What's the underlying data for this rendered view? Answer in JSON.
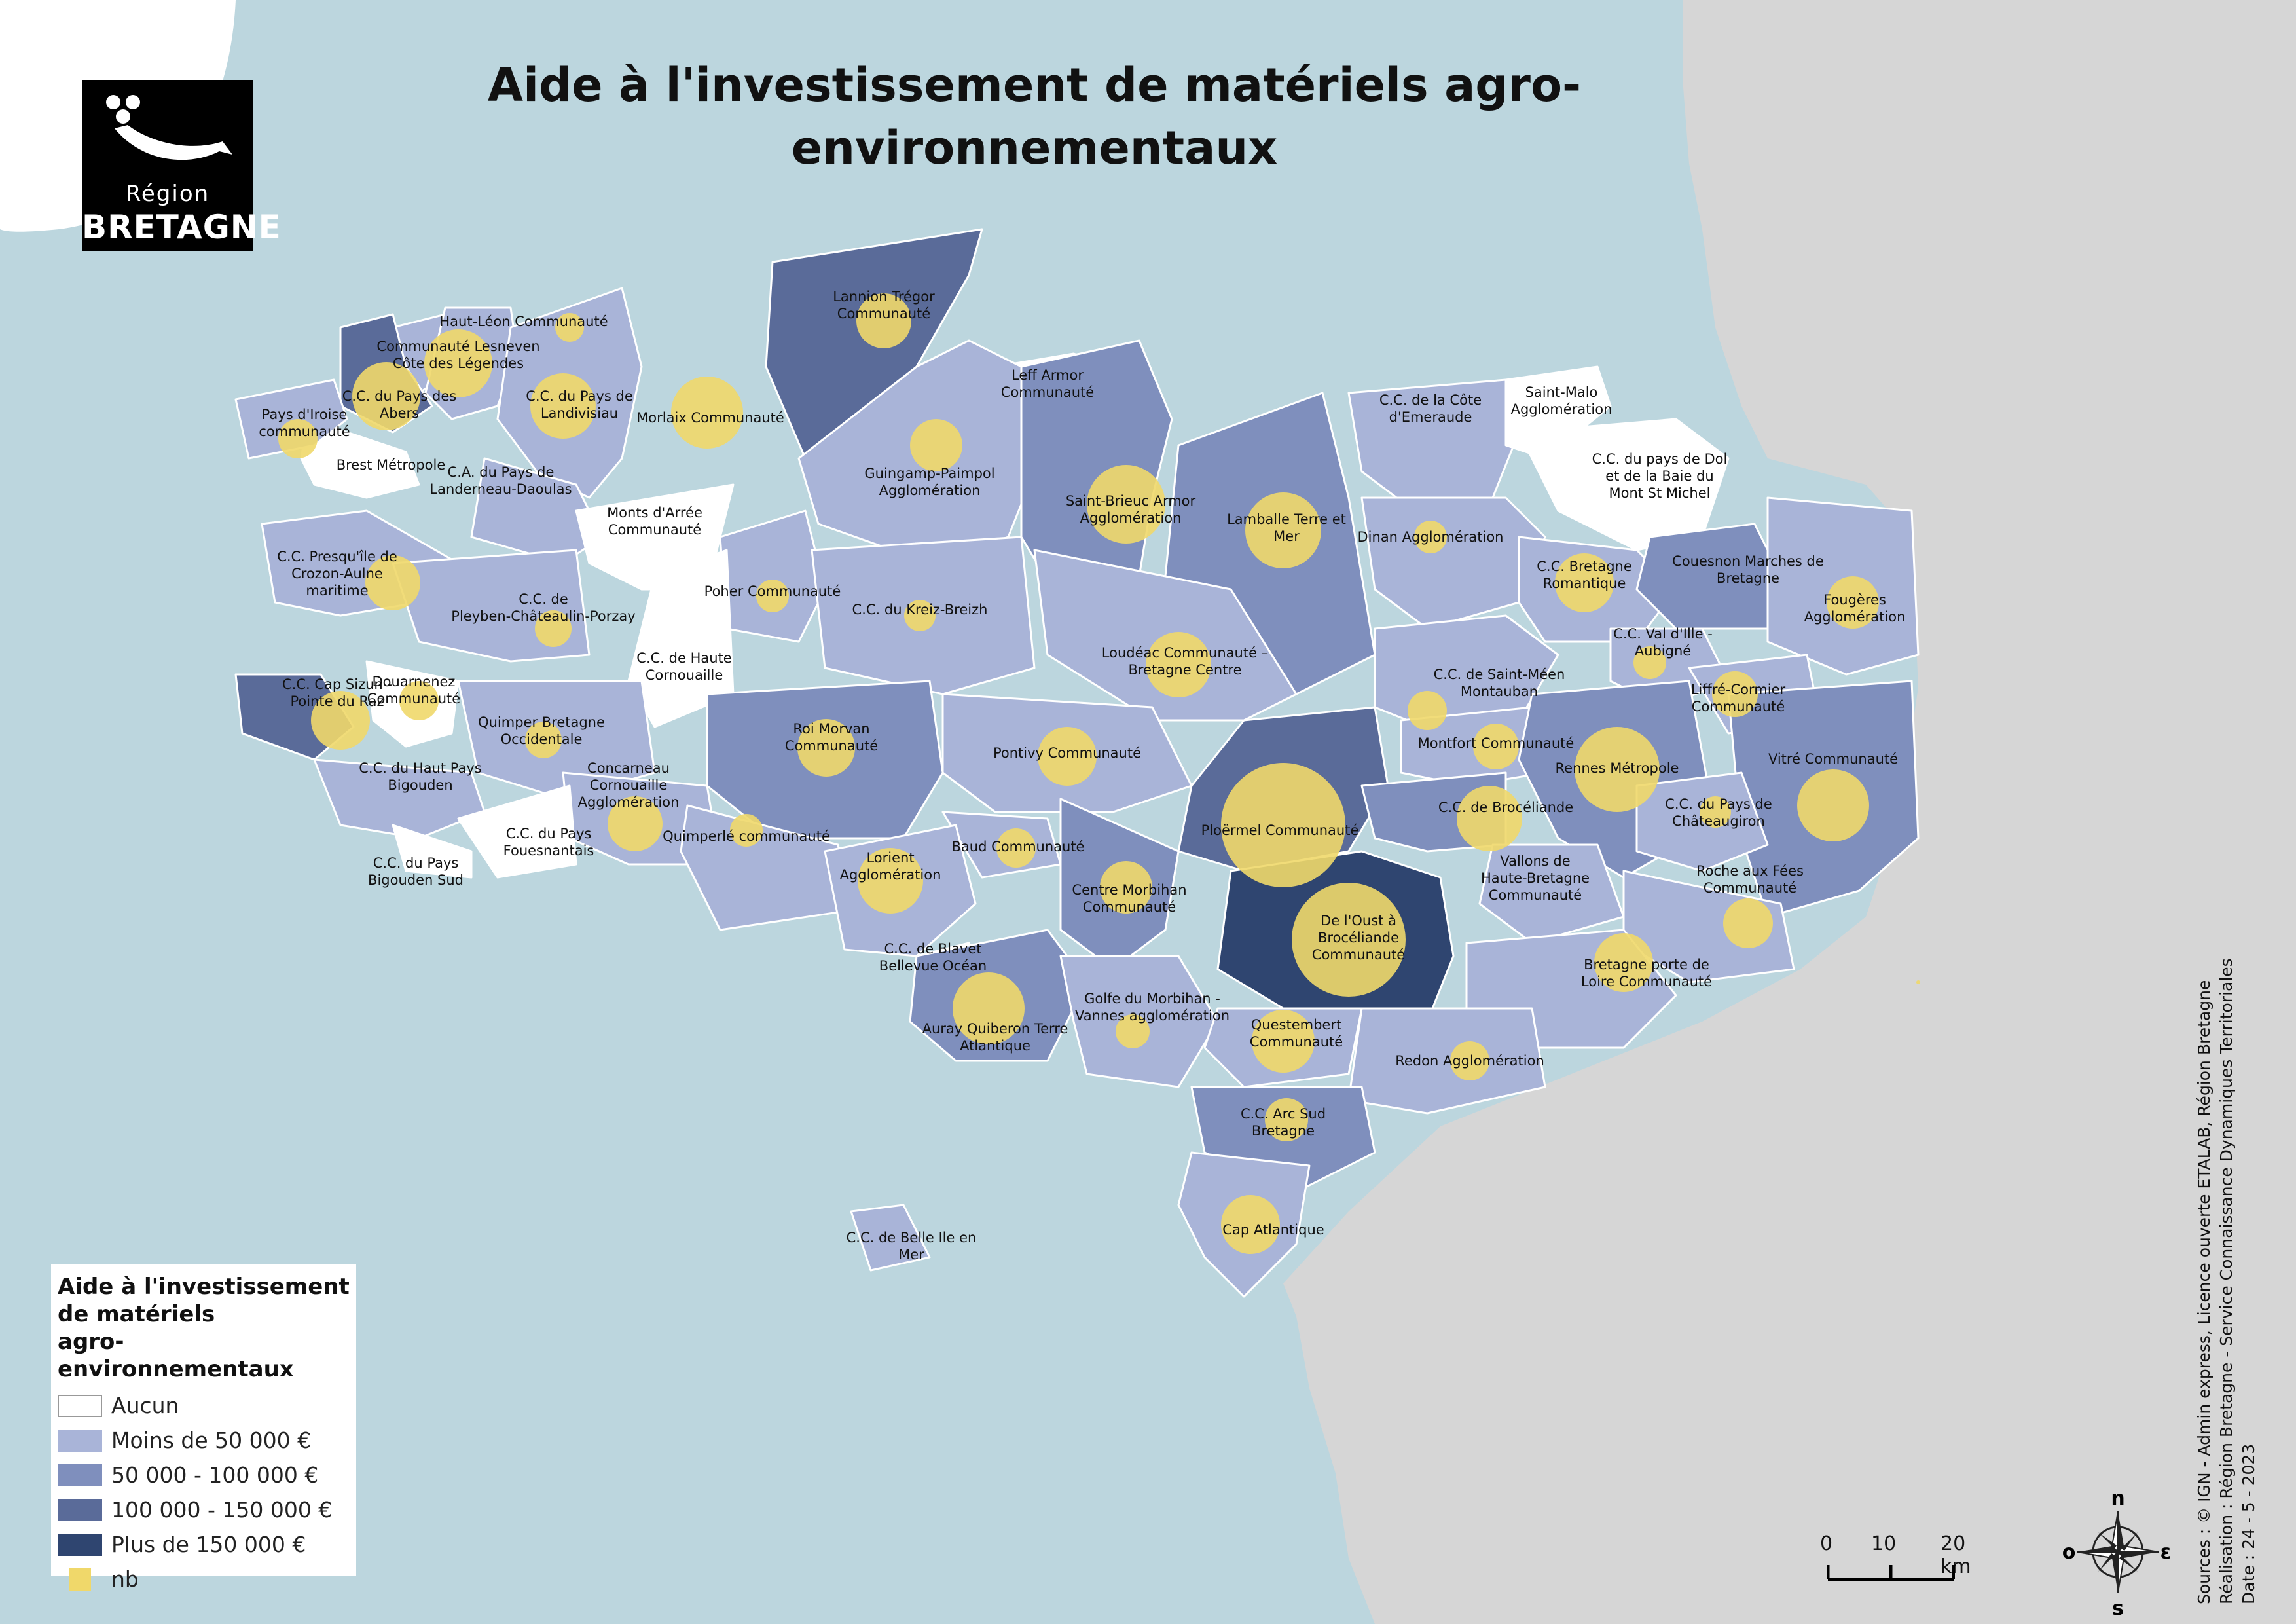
{
  "title": "Aide à l'investissement de matériels agro-environnementaux",
  "logo": {
    "region": "Région",
    "bretagne": "BRETAGNE"
  },
  "colors": {
    "sea": "#bcd6de",
    "outside_land": "#d6d6d6",
    "aucun": "#ffffff",
    "moins_50000": "#a9b4d8",
    "50000_100000": "#7f8fbd",
    "100000_150000": "#5a6b99",
    "plus_150000": "#2f4570",
    "bubble": "#f0d86a",
    "border": "#ffffff"
  },
  "legend": {
    "title_lines": [
      "Aide à l'investissement",
      "de matériels",
      "agro-environnementaux"
    ],
    "items": [
      {
        "label": "Aucun",
        "color": "#ffffff"
      },
      {
        "label": "Moins de  50 000 €",
        "color": "#a9b4d8"
      },
      {
        "label": "50 000 - 100 000 €",
        "color": "#7f8fbd"
      },
      {
        "label": "100 000 - 150 000 €",
        "color": "#5a6b99"
      },
      {
        "label": "Plus de 150 000 €",
        "color": "#2f4570"
      },
      {
        "label": "nb",
        "color": "#f0d86a"
      }
    ]
  },
  "scale_bar": {
    "labels": [
      "0",
      "10",
      "20 km"
    ]
  },
  "compass": {
    "n": "n",
    "s": "s",
    "e": "ε",
    "o": "o"
  },
  "sources": [
    "Sources : © IGN - Admin express, Licence ouverte ETALAB, Région Bretagne",
    "Réalisation : Région Bretagne - Service Connaissance Dynamiques Territoriales",
    "Date : 24 - 5 - 2023"
  ],
  "labels": [
    {
      "lines": [
        "Haut-Léon Communauté"
      ]
    },
    {
      "lines": [
        "Communauté Lesneven",
        "Côte des Légendes"
      ]
    },
    {
      "lines": [
        "C.C. du Pays des",
        "Abers"
      ]
    },
    {
      "lines": [
        "Pays d'Iroise",
        "communauté"
      ]
    },
    {
      "lines": [
        "Brest Métropole"
      ]
    },
    {
      "lines": [
        "C.C. du Pays de",
        "Landivisiau"
      ]
    },
    {
      "lines": [
        "Morlaix Communauté"
      ]
    },
    {
      "lines": [
        "Lannion Trégor",
        "Communauté"
      ]
    },
    {
      "lines": [
        "Leff Armor",
        "Communauté"
      ]
    },
    {
      "lines": [
        "Guingamp-Paimpol",
        "Agglomération"
      ]
    },
    {
      "lines": [
        "C.A. du Pays de",
        "Landerneau-Daoulas"
      ]
    },
    {
      "lines": [
        "Monts d'Arrée",
        "Communauté"
      ]
    },
    {
      "lines": [
        "C.C. Presqu'île de",
        "Crozon-Aulne",
        "maritime"
      ]
    },
    {
      "lines": [
        "Poher Communauté"
      ]
    },
    {
      "lines": [
        "C.C. de",
        "Pleyben-Châteaulin-Porzay"
      ]
    },
    {
      "lines": [
        "C.C. du Kreiz-Breizh"
      ]
    },
    {
      "lines": [
        "C.C. de Haute",
        "Cornouaille"
      ]
    },
    {
      "lines": [
        "C.C. Cap Sizun -",
        "Pointe du Raz"
      ]
    },
    {
      "lines": [
        "Douarnenez",
        "Communauté"
      ]
    },
    {
      "lines": [
        "Quimper Bretagne",
        "Occidentale"
      ]
    },
    {
      "lines": [
        "Roi Morvan",
        "Communauté"
      ]
    },
    {
      "lines": [
        "C.C. du Haut Pays",
        "Bigouden"
      ]
    },
    {
      "lines": [
        "Concarneau",
        "Cornouaille",
        "Agglomération"
      ]
    },
    {
      "lines": [
        "C.C. du Pays",
        "Fouesnantais"
      ]
    },
    {
      "lines": [
        "C.C. du Pays",
        "Bigouden Sud"
      ]
    },
    {
      "lines": [
        "Quimperlé communauté"
      ]
    },
    {
      "lines": [
        "Saint-Brieuc Armor",
        "Agglomération"
      ]
    },
    {
      "lines": [
        "Lamballe Terre et",
        "Mer"
      ]
    },
    {
      "lines": [
        "C.C. de la Côte",
        "d'Emeraude"
      ]
    },
    {
      "lines": [
        "Saint-Malo",
        "Agglomération"
      ]
    },
    {
      "lines": [
        "C.C. du pays de Dol",
        "et de la Baie du",
        "Mont St Michel"
      ]
    },
    {
      "lines": [
        "Dinan Agglomération"
      ]
    },
    {
      "lines": [
        "Loudéac Communauté –",
        "Bretagne Centre"
      ]
    },
    {
      "lines": [
        "Pontivy Communauté"
      ]
    },
    {
      "lines": [
        "C.C. Bretagne",
        "Romantique"
      ]
    },
    {
      "lines": [
        "Couesnon Marches de",
        "Bretagne"
      ]
    },
    {
      "lines": [
        "Fougères",
        "Agglomération"
      ]
    },
    {
      "lines": [
        "C.C. Val d'Ille -",
        "Aubigné"
      ]
    },
    {
      "lines": [
        "C.C. de Saint-Méen",
        "Montauban"
      ]
    },
    {
      "lines": [
        "Liffré-Cormier",
        "Communauté"
      ]
    },
    {
      "lines": [
        "Montfort Communauté"
      ]
    },
    {
      "lines": [
        "Rennes Métropole"
      ]
    },
    {
      "lines": [
        "Vitré Communauté"
      ]
    },
    {
      "lines": [
        "C.C. de Brocéliande"
      ]
    },
    {
      "lines": [
        "C.C. du Pays de",
        "Châteaugiron"
      ]
    },
    {
      "lines": [
        "Ploërmel Communauté"
      ]
    },
    {
      "lines": [
        "Baud Communauté"
      ]
    },
    {
      "lines": [
        "Lorient",
        "Agglomération"
      ]
    },
    {
      "lines": [
        "Centre Morbihan",
        "Communauté"
      ]
    },
    {
      "lines": [
        "Vallons de",
        "Haute-Bretagne",
        "Communauté"
      ]
    },
    {
      "lines": [
        "Roche aux Fées",
        "Communauté"
      ]
    },
    {
      "lines": [
        "De l'Oust à",
        "Brocéliande",
        "Communauté"
      ]
    },
    {
      "lines": [
        "C.C. de Blavet",
        "Bellevue Océan"
      ]
    },
    {
      "lines": [
        "Bretagne porte de",
        "Loire Communauté"
      ]
    },
    {
      "lines": [
        "Auray Quiberon Terre",
        "Atlantique"
      ]
    },
    {
      "lines": [
        "Golfe du Morbihan -",
        "Vannes agglomération"
      ]
    },
    {
      "lines": [
        "Questembert",
        "Communauté"
      ]
    },
    {
      "lines": [
        "Redon Agglomération"
      ]
    },
    {
      "lines": [
        "C.C. Arc Sud",
        "Bretagne"
      ]
    },
    {
      "lines": [
        "Cap Atlantique"
      ]
    },
    {
      "lines": [
        "C.C. de Belle Ile en",
        "Mer"
      ]
    }
  ]
}
